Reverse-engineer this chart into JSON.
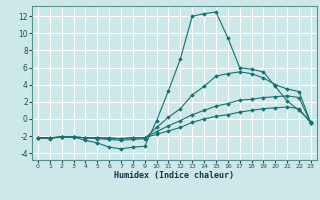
{
  "xlabel": "Humidex (Indice chaleur)",
  "background_color": "#cce8e8",
  "grid_color": "#ffffff",
  "line_color": "#1a7070",
  "xlim": [
    -0.5,
    23.5
  ],
  "ylim": [
    -4.8,
    13.2
  ],
  "xticks": [
    0,
    1,
    2,
    3,
    4,
    5,
    6,
    7,
    8,
    9,
    10,
    11,
    12,
    13,
    14,
    15,
    16,
    17,
    18,
    19,
    20,
    21,
    22,
    23
  ],
  "yticks": [
    -4,
    -2,
    0,
    2,
    4,
    6,
    8,
    10,
    12
  ],
  "series": [
    {
      "x": [
        0,
        1,
        2,
        3,
        4,
        5,
        6,
        7,
        8,
        9,
        10,
        11,
        12,
        13,
        14,
        15,
        16,
        17,
        18,
        19,
        20,
        21,
        22,
        23
      ],
      "y": [
        -2.2,
        -2.3,
        -2.1,
        -2.1,
        -2.5,
        -2.8,
        -3.3,
        -3.5,
        -3.3,
        -3.2,
        -0.2,
        3.3,
        7.0,
        12.0,
        12.3,
        12.5,
        9.5,
        6.0,
        5.8,
        5.5,
        3.8,
        2.1,
        1.0,
        -0.3
      ]
    },
    {
      "x": [
        0,
        1,
        2,
        3,
        4,
        5,
        6,
        7,
        8,
        9,
        10,
        11,
        12,
        13,
        14,
        15,
        16,
        17,
        18,
        19,
        20,
        21,
        22,
        23
      ],
      "y": [
        -2.2,
        -2.2,
        -2.1,
        -2.1,
        -2.2,
        -2.3,
        -2.4,
        -2.5,
        -2.4,
        -2.3,
        -1.0,
        0.2,
        1.2,
        2.8,
        3.8,
        5.0,
        5.3,
        5.5,
        5.3,
        4.8,
        4.0,
        3.5,
        3.2,
        -0.5
      ]
    },
    {
      "x": [
        0,
        1,
        2,
        3,
        4,
        5,
        6,
        7,
        8,
        9,
        10,
        11,
        12,
        13,
        14,
        15,
        16,
        17,
        18,
        19,
        20,
        21,
        22,
        23
      ],
      "y": [
        -2.2,
        -2.2,
        -2.1,
        -2.1,
        -2.2,
        -2.2,
        -2.3,
        -2.3,
        -2.2,
        -2.2,
        -1.5,
        -0.8,
        -0.2,
        0.5,
        1.0,
        1.5,
        1.8,
        2.2,
        2.3,
        2.5,
        2.6,
        2.7,
        2.5,
        -0.5
      ]
    },
    {
      "x": [
        0,
        1,
        2,
        3,
        4,
        5,
        6,
        7,
        8,
        9,
        10,
        11,
        12,
        13,
        14,
        15,
        16,
        17,
        18,
        19,
        20,
        21,
        22,
        23
      ],
      "y": [
        -2.2,
        -2.2,
        -2.1,
        -2.1,
        -2.2,
        -2.2,
        -2.2,
        -2.3,
        -2.2,
        -2.2,
        -1.8,
        -1.4,
        -1.0,
        -0.4,
        0.0,
        0.3,
        0.5,
        0.8,
        1.0,
        1.2,
        1.3,
        1.4,
        1.2,
        -0.5
      ]
    }
  ]
}
